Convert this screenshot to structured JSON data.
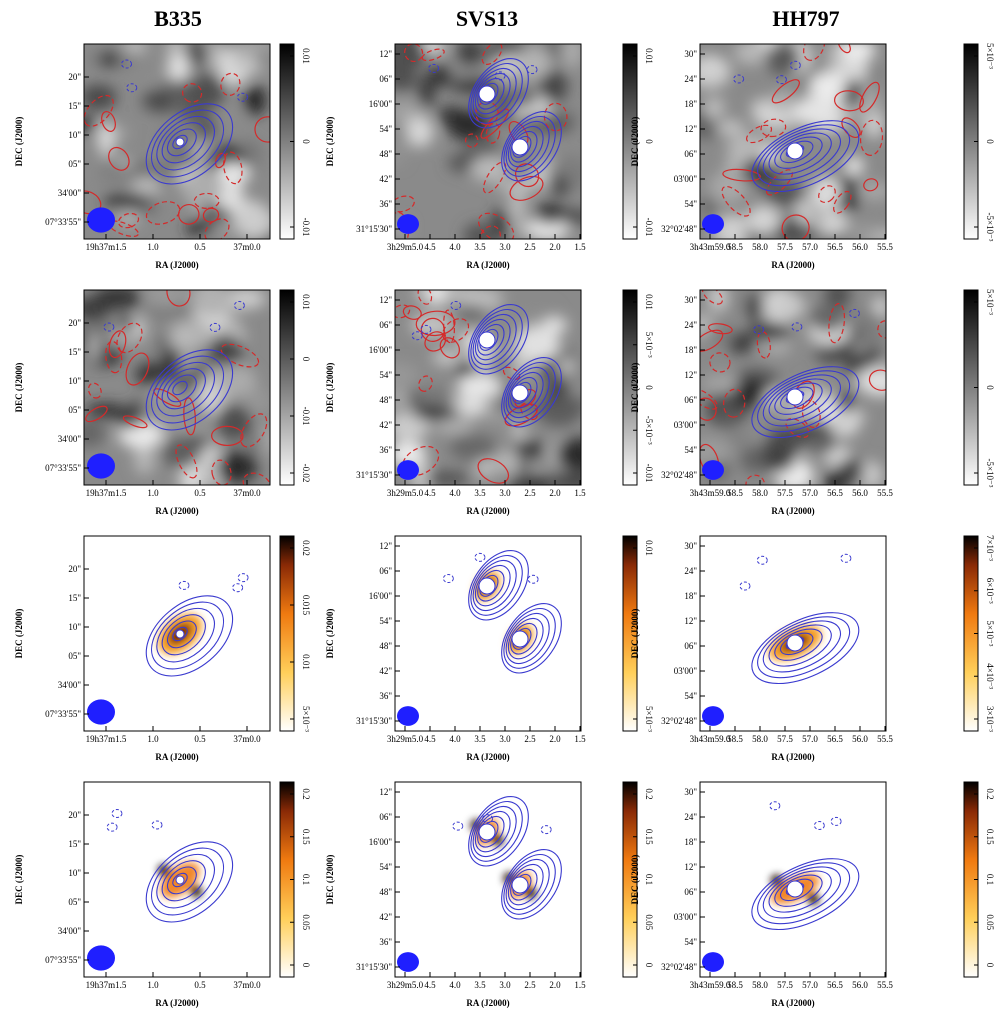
{
  "columns": [
    {
      "title": "B335",
      "ra_ticks": [
        "19h37m1.5",
        "1.0",
        "0.5",
        "37m0.0"
      ],
      "dec_ticks": [
        "20\"",
        "15\"",
        "10\"",
        "05\"",
        "34'00\"",
        "07°33'55\""
      ],
      "colorbars": [
        [
          "0.01",
          "0",
          "-0.01"
        ],
        [
          "0.01",
          "0",
          "-0.01",
          "-0.02"
        ],
        [
          "0.02",
          "0.015",
          "0.01",
          "5×10⁻³"
        ],
        [
          "0.2",
          "0.15",
          "0.1",
          "0.05",
          "0"
        ]
      ]
    },
    {
      "title": "SVS13",
      "ra_ticks": [
        "3h29m5.0",
        "4.5",
        "4.0",
        "3.5",
        "3.0",
        "2.5",
        "2.0",
        "1.5"
      ],
      "dec_ticks": [
        "12\"",
        "06\"",
        "16'00\"",
        "54\"",
        "48\"",
        "42\"",
        "36\"",
        "31°15'30\""
      ],
      "colorbars": [
        [
          "0.01",
          "0",
          "-0.01"
        ],
        [
          "0.01",
          "5×10⁻³",
          "0",
          "-5×10⁻³",
          "-0.01"
        ],
        [
          "0.01",
          "5×10⁻³"
        ],
        [
          "0.2",
          "0.15",
          "0.1",
          "0.05",
          "0"
        ]
      ]
    },
    {
      "title": "HH797",
      "ra_ticks": [
        "3h43m59.0",
        "58.5",
        "58.0",
        "57.5",
        "57.0",
        "56.5",
        "56.0",
        "55.5"
      ],
      "dec_ticks": [
        "30\"",
        "24\"",
        "18\"",
        "12\"",
        "06\"",
        "03'00\"",
        "54\"",
        "32°02'48\""
      ],
      "colorbars": [
        [
          "5×10⁻³",
          "0",
          "-5×10⁻³"
        ],
        [
          "5×10⁻³",
          "0",
          "-5×10⁻³"
        ],
        [
          "7×10⁻³",
          "6×10⁻³",
          "5×10⁻³",
          "4×10⁻³",
          "3×10⁻³"
        ],
        [
          "0.2",
          "0.15",
          "0.1",
          "0.05",
          "0"
        ]
      ]
    }
  ],
  "xlabel": "RA (J2000)",
  "ylabel": "DEC (J2000)",
  "colors": {
    "blue_contour": "#3a3acf",
    "red_contour": "#d42a2a",
    "beam": "#1f1fff"
  }
}
